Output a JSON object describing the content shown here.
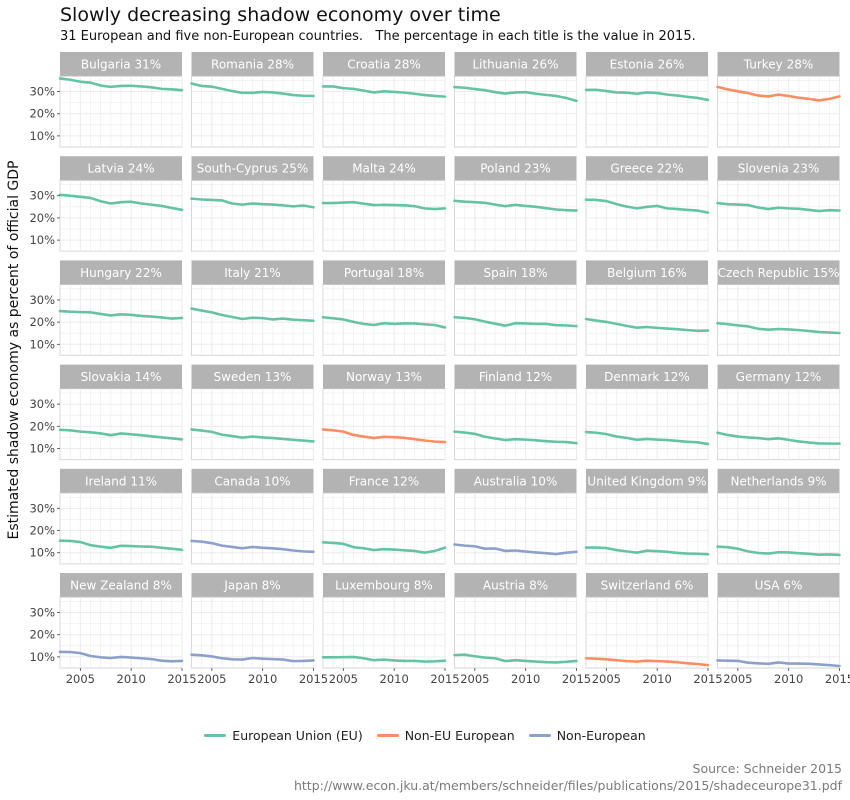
{
  "title": "Slowly decreasing shadow economy over time",
  "subtitle": "31 European and five non-European countries.   The percentage in each title is the value in 2015.",
  "source_line1": "Source: Schneider 2015",
  "source_line2": "http://www.econ.jku.at/members/schneider/files/publications/2015/shadeceurope31.pdf",
  "colors": {
    "EU": "#66c2a5",
    "NonEU": "#fc8d62",
    "NonEurope": "#8da0cb",
    "strip_bg": "#b3b3b3",
    "panel_border": "#bdbdbd",
    "grid": "#ebebeb"
  },
  "legend": [
    {
      "label": "European Union (EU)",
      "group": "EU"
    },
    {
      "label": "Non-EU European",
      "group": "NonEU"
    },
    {
      "label": "Non-European",
      "group": "NonEurope"
    }
  ],
  "chart_data": {
    "type": "line",
    "facet": true,
    "ylabel": "Estimated shadow economy as percent of official GDP",
    "xlabel": "",
    "xlim": [
      2003,
      2015
    ],
    "ylim": [
      5,
      37
    ],
    "x_ticks": [
      2005,
      2010,
      2015
    ],
    "x_tick_labels": [
      "2005",
      "2010",
      "2015"
    ],
    "y_ticks": [
      10,
      20,
      30
    ],
    "y_tick_labels": [
      "10%",
      "20%",
      "30%"
    ],
    "x": [
      2003,
      2004,
      2005,
      2006,
      2007,
      2008,
      2009,
      2010,
      2011,
      2012,
      2013,
      2014,
      2015
    ],
    "legend_position": "bottom",
    "panels": [
      {
        "name": "Bulgaria 31%",
        "group": "EU",
        "values": [
          35.9,
          35.3,
          34.4,
          34.0,
          32.7,
          32.1,
          32.5,
          32.6,
          32.3,
          31.9,
          31.2,
          31.0,
          30.6
        ]
      },
      {
        "name": "Romania 28%",
        "group": "EU",
        "values": [
          33.6,
          32.5,
          32.2,
          31.2,
          30.2,
          29.4,
          29.4,
          29.8,
          29.6,
          29.1,
          28.4,
          28.1,
          28.0
        ]
      },
      {
        "name": "Croatia 28%",
        "group": "EU",
        "values": [
          32.3,
          32.3,
          31.5,
          31.2,
          30.4,
          29.6,
          30.1,
          29.8,
          29.5,
          29.0,
          28.4,
          28.0,
          27.7
        ]
      },
      {
        "name": "Lithuania 26%",
        "group": "EU",
        "values": [
          32.0,
          31.7,
          31.1,
          30.6,
          29.7,
          29.1,
          29.6,
          29.7,
          29.0,
          28.5,
          28.0,
          27.1,
          25.8
        ]
      },
      {
        "name": "Estonia 26%",
        "group": "EU",
        "values": [
          30.7,
          30.8,
          30.2,
          29.6,
          29.5,
          29.0,
          29.6,
          29.3,
          28.6,
          28.2,
          27.6,
          27.1,
          26.2
        ]
      },
      {
        "name": "Turkey 28%",
        "group": "NonEU",
        "values": [
          32.1,
          31.0,
          30.1,
          29.3,
          28.2,
          27.8,
          28.6,
          28.0,
          27.2,
          26.7,
          26.0,
          26.7,
          27.8
        ]
      },
      {
        "name": "Latvia 24%",
        "group": "EU",
        "values": [
          30.4,
          30.0,
          29.5,
          29.0,
          27.5,
          26.5,
          27.1,
          27.3,
          26.5,
          26.0,
          25.4,
          24.5,
          23.6
        ]
      },
      {
        "name": "South-Cyprus 25%",
        "group": "EU",
        "values": [
          28.7,
          28.3,
          28.1,
          27.9,
          26.5,
          26.0,
          26.5,
          26.2,
          26.0,
          25.7,
          25.2,
          25.6,
          24.8
        ]
      },
      {
        "name": "Malta 24%",
        "group": "EU",
        "values": [
          26.7,
          26.7,
          26.9,
          27.1,
          26.4,
          25.8,
          25.9,
          25.8,
          25.7,
          25.3,
          24.3,
          24.0,
          24.3
        ]
      },
      {
        "name": "Poland 23%",
        "group": "EU",
        "values": [
          27.7,
          27.3,
          27.1,
          26.8,
          26.0,
          25.3,
          25.9,
          25.4,
          25.0,
          24.4,
          23.8,
          23.5,
          23.3
        ]
      },
      {
        "name": "Greece 22%",
        "group": "EU",
        "values": [
          28.2,
          28.1,
          27.6,
          26.2,
          25.1,
          24.3,
          25.0,
          25.4,
          24.3,
          24.0,
          23.6,
          23.3,
          22.4
        ]
      },
      {
        "name": "Slovenia 23%",
        "group": "EU",
        "values": [
          26.7,
          26.2,
          26.0,
          25.8,
          24.7,
          24.0,
          24.6,
          24.3,
          24.1,
          23.6,
          23.1,
          23.5,
          23.3
        ]
      },
      {
        "name": "Hungary 22%",
        "group": "EU",
        "values": [
          25.0,
          24.7,
          24.5,
          24.4,
          23.7,
          23.0,
          23.5,
          23.3,
          22.8,
          22.5,
          22.1,
          21.6,
          21.9
        ]
      },
      {
        "name": "Italy 21%",
        "group": "EU",
        "values": [
          26.1,
          25.2,
          24.4,
          23.2,
          22.3,
          21.4,
          22.0,
          21.8,
          21.2,
          21.6,
          21.1,
          20.9,
          20.6
        ]
      },
      {
        "name": "Portugal 18%",
        "group": "EU",
        "values": [
          22.2,
          21.7,
          21.2,
          20.1,
          19.2,
          18.7,
          19.5,
          19.2,
          19.4,
          19.4,
          19.0,
          18.7,
          17.6
        ]
      },
      {
        "name": "Spain 18%",
        "group": "EU",
        "values": [
          22.2,
          21.9,
          21.3,
          20.2,
          19.3,
          18.4,
          19.5,
          19.4,
          19.2,
          19.2,
          18.6,
          18.5,
          18.2
        ]
      },
      {
        "name": "Belgium 16%",
        "group": "EU",
        "values": [
          21.4,
          20.7,
          20.1,
          19.2,
          18.3,
          17.5,
          17.8,
          17.4,
          17.1,
          16.8,
          16.4,
          16.1,
          16.2
        ]
      },
      {
        "name": "Czech Republic 15%",
        "group": "EU",
        "values": [
          19.5,
          19.1,
          18.5,
          18.1,
          17.0,
          16.6,
          16.9,
          16.7,
          16.4,
          16.0,
          15.5,
          15.3,
          15.1
        ]
      },
      {
        "name": "Slovakia 14%",
        "group": "EU",
        "values": [
          18.4,
          18.2,
          17.6,
          17.3,
          16.8,
          16.0,
          16.8,
          16.4,
          16.0,
          15.5,
          15.0,
          14.6,
          14.1
        ]
      },
      {
        "name": "Sweden 13%",
        "group": "EU",
        "values": [
          18.6,
          18.1,
          17.5,
          16.2,
          15.6,
          14.9,
          15.4,
          15.0,
          14.7,
          14.3,
          13.9,
          13.6,
          13.2
        ]
      },
      {
        "name": "Norway 13%",
        "group": "NonEU",
        "values": [
          18.6,
          18.2,
          17.6,
          16.1,
          15.4,
          14.7,
          15.3,
          15.1,
          14.8,
          14.2,
          13.6,
          13.1,
          12.9
        ]
      },
      {
        "name": "Finland 12%",
        "group": "EU",
        "values": [
          17.6,
          17.2,
          16.6,
          15.3,
          14.5,
          13.8,
          14.2,
          14.0,
          13.7,
          13.3,
          13.0,
          12.9,
          12.4
        ]
      },
      {
        "name": "Denmark 12%",
        "group": "EU",
        "values": [
          17.4,
          17.1,
          16.5,
          15.4,
          14.8,
          13.9,
          14.3,
          14.0,
          13.8,
          13.4,
          13.0,
          12.8,
          12.0
        ]
      },
      {
        "name": "Germany 12%",
        "group": "EU",
        "values": [
          17.1,
          16.1,
          15.4,
          15.0,
          14.7,
          14.2,
          14.6,
          13.9,
          13.2,
          12.7,
          12.3,
          12.2,
          12.2
        ]
      },
      {
        "name": "Ireland 11%",
        "group": "EU",
        "values": [
          15.4,
          15.3,
          14.8,
          13.4,
          12.7,
          12.2,
          13.1,
          13.0,
          12.8,
          12.7,
          12.2,
          11.8,
          11.3
        ]
      },
      {
        "name": "Canada 10%",
        "group": "NonEurope",
        "values": [
          15.3,
          15.0,
          14.3,
          13.2,
          12.6,
          12.0,
          12.6,
          12.2,
          12.0,
          11.6,
          11.0,
          10.6,
          10.4
        ]
      },
      {
        "name": "France 12%",
        "group": "EU",
        "values": [
          14.7,
          14.4,
          14.0,
          12.5,
          12.0,
          11.2,
          11.6,
          11.4,
          11.1,
          10.8,
          10.0,
          10.8,
          12.3
        ]
      },
      {
        "name": "Australia 10%",
        "group": "NonEurope",
        "values": [
          13.7,
          13.2,
          12.9,
          11.8,
          11.9,
          10.8,
          11.0,
          10.5,
          10.1,
          9.8,
          9.4,
          10.0,
          10.4
        ]
      },
      {
        "name": "United Kingdom 9%",
        "group": "EU",
        "values": [
          12.3,
          12.3,
          12.1,
          11.2,
          10.6,
          10.0,
          10.9,
          10.7,
          10.4,
          9.9,
          9.6,
          9.5,
          9.3
        ]
      },
      {
        "name": "Netherlands 9%",
        "group": "EU",
        "values": [
          12.7,
          12.5,
          11.8,
          10.6,
          9.9,
          9.6,
          10.2,
          10.1,
          9.8,
          9.5,
          9.1,
          9.2,
          9.0
        ]
      },
      {
        "name": "New Zealand 8%",
        "group": "NonEurope",
        "values": [
          12.3,
          12.2,
          11.7,
          10.4,
          9.8,
          9.5,
          10.0,
          9.7,
          9.4,
          9.0,
          8.3,
          8.0,
          8.2
        ]
      },
      {
        "name": "Japan 8%",
        "group": "NonEurope",
        "values": [
          11.0,
          10.7,
          10.2,
          9.4,
          8.9,
          8.8,
          9.5,
          9.2,
          9.0,
          8.8,
          8.1,
          8.2,
          8.4
        ]
      },
      {
        "name": "Luxembourg 8%",
        "group": "EU",
        "values": [
          9.8,
          9.8,
          9.9,
          10.0,
          9.4,
          8.5,
          8.8,
          8.4,
          8.2,
          8.2,
          7.9,
          8.0,
          8.3
        ]
      },
      {
        "name": "Austria 8%",
        "group": "EU",
        "values": [
          10.8,
          11.0,
          10.3,
          9.7,
          9.4,
          8.1,
          8.5,
          8.2,
          7.9,
          7.6,
          7.5,
          7.8,
          8.2
        ]
      },
      {
        "name": "Switzerland 6%",
        "group": "NonEU",
        "values": [
          9.4,
          9.2,
          8.9,
          8.5,
          8.1,
          7.9,
          8.3,
          8.1,
          7.9,
          7.6,
          7.1,
          6.8,
          6.3
        ]
      },
      {
        "name": "USA 6%",
        "group": "NonEurope",
        "values": [
          8.4,
          8.3,
          8.2,
          7.4,
          7.1,
          6.9,
          7.5,
          7.0,
          7.0,
          6.9,
          6.6,
          6.3,
          5.9
        ]
      }
    ]
  }
}
